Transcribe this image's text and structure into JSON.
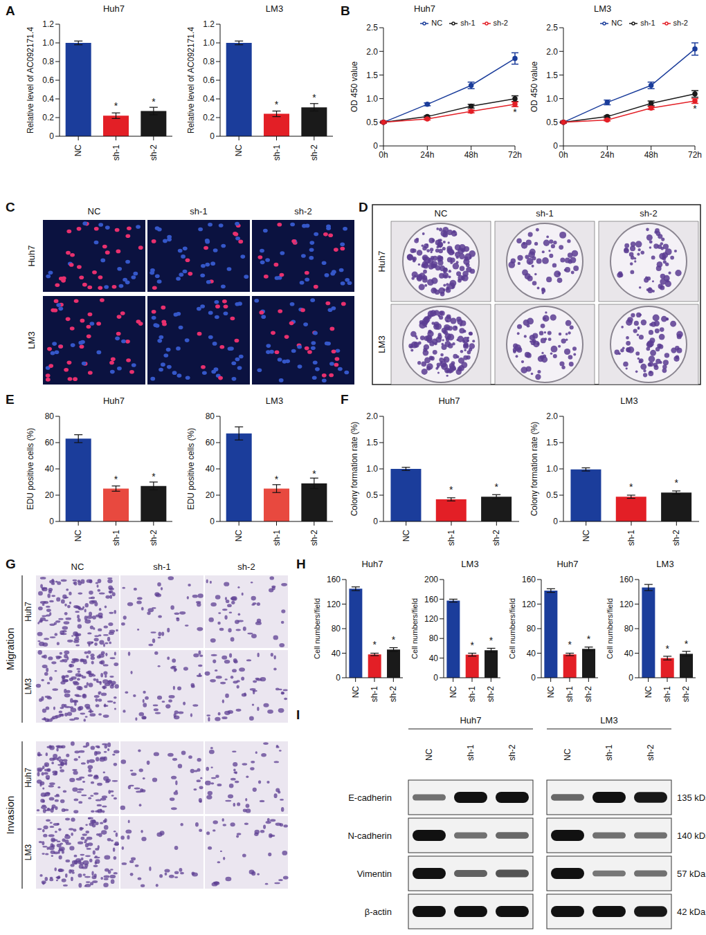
{
  "panel_labels": [
    "A",
    "B",
    "C",
    "D",
    "E",
    "F",
    "G",
    "H",
    "I"
  ],
  "chart_data": [
    {
      "type": "bar",
      "title": "Huh7",
      "y_label": "Relative level of AC092171.4",
      "categories": [
        "NC",
        "sh-1",
        "sh-2"
      ],
      "values": [
        1.0,
        0.22,
        0.27
      ],
      "errors": [
        0.02,
        0.03,
        0.04
      ],
      "colors": [
        "#1b3d9b",
        "#e31f26",
        "#1a1a1a"
      ],
      "ylim": [
        0,
        1.2
      ],
      "yticks": [
        0,
        0.2,
        0.4,
        0.6,
        0.8,
        {
          "value": 1,
          "label": "1.0"
        },
        1.2
      ],
      "annotations": [
        null,
        "*",
        "*"
      ]
    },
    {
      "type": "bar",
      "title": "LM3",
      "y_label": "Relative level of AC092171.4",
      "categories": [
        "NC",
        "sh-1",
        "sh-2"
      ],
      "values": [
        1.0,
        0.24,
        0.31
      ],
      "errors": [
        0.02,
        0.03,
        0.04
      ],
      "colors": [
        "#1b3d9b",
        "#e31f26",
        "#1a1a1a"
      ],
      "ylim": [
        0,
        1.2
      ],
      "yticks": [
        0,
        0.2,
        0.4,
        0.6,
        0.8,
        {
          "value": 1,
          "label": "1.0"
        },
        1.2
      ],
      "annotations": [
        null,
        "*",
        "*"
      ]
    },
    {
      "type": "line",
      "title": "Huh7",
      "y_label": "OD 450 value",
      "categories": [
        "0h",
        "24h",
        "48h",
        "72h"
      ],
      "legend": "upper right",
      "ylim": [
        0,
        2.5
      ],
      "yticks": [
        0,
        0.5,
        {
          "value": 1,
          "label": "1.0"
        },
        1.5,
        {
          "value": 2,
          "label": "2.0"
        },
        2.5
      ],
      "series": [
        {
          "name": "NC",
          "color": "#1b3d9b",
          "marker": "circle",
          "values": [
            0.5,
            0.88,
            1.28,
            1.85
          ],
          "errors": [
            0.02,
            0.03,
            0.07,
            0.12
          ]
        },
        {
          "name": "sh-1",
          "color": "#1a1a1a",
          "marker": "circle",
          "values": [
            0.5,
            0.62,
            0.84,
            1.0
          ],
          "errors": [
            0.02,
            0.02,
            0.04,
            0.06
          ]
        },
        {
          "name": "sh-2",
          "color": "#e31f26",
          "marker": "circle",
          "values": [
            0.5,
            0.57,
            0.73,
            0.88
          ],
          "errors": [
            0.02,
            0.02,
            0.03,
            0.05
          ],
          "annotations": [
            null,
            null,
            null,
            "*"
          ]
        }
      ]
    },
    {
      "type": "line",
      "title": "LM3",
      "y_label": "OD 450 value",
      "categories": [
        "0h",
        "24h",
        "48h",
        "72h"
      ],
      "legend": "upper right",
      "ylim": [
        0,
        2.5
      ],
      "yticks": [
        0,
        0.5,
        {
          "value": 1,
          "label": "1.0"
        },
        1.5,
        {
          "value": 2,
          "label": "2.0"
        },
        2.5
      ],
      "series": [
        {
          "name": "NC",
          "color": "#1b3d9b",
          "marker": "circle",
          "values": [
            0.5,
            0.92,
            1.28,
            2.05
          ],
          "errors": [
            0.02,
            0.05,
            0.07,
            0.13
          ]
        },
        {
          "name": "sh-1",
          "color": "#1a1a1a",
          "marker": "circle",
          "values": [
            0.5,
            0.62,
            0.9,
            1.1
          ],
          "errors": [
            0.02,
            0.02,
            0.05,
            0.07
          ]
        },
        {
          "name": "sh-2",
          "color": "#e31f26",
          "marker": "circle",
          "values": [
            0.5,
            0.55,
            0.8,
            0.95
          ],
          "errors": [
            0.02,
            0.02,
            0.03,
            0.05
          ],
          "annotations": [
            null,
            null,
            null,
            "*"
          ]
        }
      ]
    },
    {
      "type": "bar",
      "title": "Huh7",
      "y_label": "EDU positive cells (%)",
      "categories": [
        "NC",
        "sh-1",
        "sh-2"
      ],
      "values": [
        63,
        25,
        27
      ],
      "errors": [
        3,
        2,
        3
      ],
      "colors": [
        "#1b3d9b",
        "#e8493f",
        "#1a1a1a"
      ],
      "ylim": [
        0,
        80
      ],
      "yticks": [
        0,
        20,
        40,
        60,
        80
      ],
      "annotations": [
        null,
        "*",
        "*"
      ]
    },
    {
      "type": "bar",
      "title": "LM3",
      "y_label": "EDU positive cells (%)",
      "categories": [
        "NC",
        "sh-1",
        "sh-2"
      ],
      "values": [
        67,
        25,
        29
      ],
      "errors": [
        5,
        3,
        4
      ],
      "colors": [
        "#1b3d9b",
        "#e8493f",
        "#1a1a1a"
      ],
      "ylim": [
        0,
        80
      ],
      "yticks": [
        0,
        20,
        40,
        60,
        80
      ],
      "annotations": [
        null,
        "*",
        "*"
      ]
    },
    {
      "type": "bar",
      "title": "Huh7",
      "y_label": "Colony formation rate (%)",
      "categories": [
        "NC",
        "sh-1",
        "sh-2"
      ],
      "values": [
        1.0,
        0.42,
        0.47
      ],
      "errors": [
        0.03,
        0.03,
        0.04
      ],
      "colors": [
        "#1b3d9b",
        "#e31f26",
        "#1a1a1a"
      ],
      "ylim": [
        0,
        2
      ],
      "yticks": [
        0,
        0.5,
        {
          "value": 1,
          "label": "1.0"
        },
        1.5,
        {
          "value": 2,
          "label": "2.0"
        }
      ],
      "annotations": [
        null,
        "*",
        "*"
      ]
    },
    {
      "type": "bar",
      "title": "LM3",
      "y_label": "Colony formation rate (%)",
      "categories": [
        "NC",
        "sh-1",
        "sh-2"
      ],
      "values": [
        0.99,
        0.47,
        0.55
      ],
      "errors": [
        0.03,
        0.03,
        0.03
      ],
      "colors": [
        "#1b3d9b",
        "#e31f26",
        "#1a1a1a"
      ],
      "ylim": [
        0,
        2
      ],
      "yticks": [
        0,
        0.5,
        {
          "value": 1,
          "label": "1.0"
        },
        1.5,
        {
          "value": 2,
          "label": "2.0"
        }
      ],
      "annotations": [
        null,
        "*",
        "*"
      ]
    },
    {
      "type": "bar",
      "title": "Huh7",
      "y_label": "Cell numbers/field",
      "categories": [
        "NC",
        "sh-1",
        "sh-2"
      ],
      "values": [
        145,
        38,
        46
      ],
      "errors": [
        3,
        2,
        3
      ],
      "colors": [
        "#1b3d9b",
        "#e31f26",
        "#1a1a1a"
      ],
      "ylim": [
        0,
        160
      ],
      "yticks": [
        0,
        40,
        80,
        120,
        160
      ],
      "annotations": [
        null,
        "*",
        "*"
      ]
    },
    {
      "type": "bar",
      "title": "LM3",
      "y_label": "Cell numbers/field",
      "categories": [
        "NC",
        "sh-1",
        "sh-2"
      ],
      "values": [
        157,
        47,
        56
      ],
      "errors": [
        3,
        3,
        4
      ],
      "colors": [
        "#1b3d9b",
        "#e31f26",
        "#1a1a1a"
      ],
      "ylim": [
        0,
        200
      ],
      "yticks": [
        0,
        40,
        80,
        120,
        160,
        200
      ],
      "annotations": [
        null,
        "*",
        "*"
      ]
    },
    {
      "type": "bar",
      "title": "Huh7",
      "y_label": "Cell numbers/field",
      "categories": [
        "NC",
        "sh-1",
        "sh-2"
      ],
      "values": [
        142,
        38,
        47
      ],
      "errors": [
        3,
        2,
        3
      ],
      "colors": [
        "#1b3d9b",
        "#e31f26",
        "#1a1a1a"
      ],
      "ylim": [
        0,
        160
      ],
      "yticks": [
        0,
        40,
        80,
        120,
        160
      ],
      "annotations": [
        null,
        "*",
        "*"
      ]
    },
    {
      "type": "bar",
      "title": "LM3",
      "y_label": "Cell numbers/field",
      "categories": [
        "NC",
        "sh-1",
        "sh-2"
      ],
      "values": [
        147,
        32,
        39
      ],
      "errors": [
        5,
        3,
        4
      ],
      "colors": [
        "#1b3d9b",
        "#e31f26",
        "#1a1a1a"
      ],
      "ylim": [
        0,
        160
      ],
      "yticks": [
        0,
        40,
        80,
        120,
        160
      ],
      "annotations": [
        null,
        "*",
        "*"
      ]
    }
  ],
  "image_panels": {
    "C": {
      "columns": [
        "NC",
        "sh-1",
        "sh-2"
      ],
      "rows": [
        "Huh7",
        "LM3"
      ]
    },
    "D": {
      "columns": [
        "NC",
        "sh-1",
        "sh-2"
      ],
      "rows": [
        "Huh7",
        "LM3"
      ]
    },
    "G": {
      "columns": [
        "NC",
        "sh-1",
        "sh-2"
      ],
      "groups": [
        {
          "name": "Migration",
          "rows": [
            "Huh7",
            "LM3"
          ]
        },
        {
          "name": "Invasion",
          "rows": [
            "Huh7",
            "LM3"
          ]
        }
      ]
    }
  },
  "western_blot": {
    "cell_lines": [
      "Huh7",
      "LM3"
    ],
    "lanes": [
      "NC",
      "sh-1",
      "sh-2"
    ],
    "rows": [
      {
        "name": "E-cadherin",
        "size": "135 kDa",
        "intensity": [
          [
            0.35,
            1,
            1
          ],
          [
            0.4,
            1,
            0.95
          ]
        ]
      },
      {
        "name": "N-cadherin",
        "size": "140 kDa",
        "intensity": [
          [
            1,
            0.35,
            0.4
          ],
          [
            1,
            0.35,
            0.35
          ]
        ]
      },
      {
        "name": "Vimentin",
        "size": "57 kDa",
        "intensity": [
          [
            1,
            0.45,
            0.55
          ],
          [
            1,
            0.3,
            0.35
          ]
        ]
      },
      {
        "name": "β-actin",
        "size": "42 kDa",
        "intensity": [
          [
            1,
            1,
            1
          ],
          [
            1,
            1,
            0.95
          ]
        ]
      }
    ]
  }
}
